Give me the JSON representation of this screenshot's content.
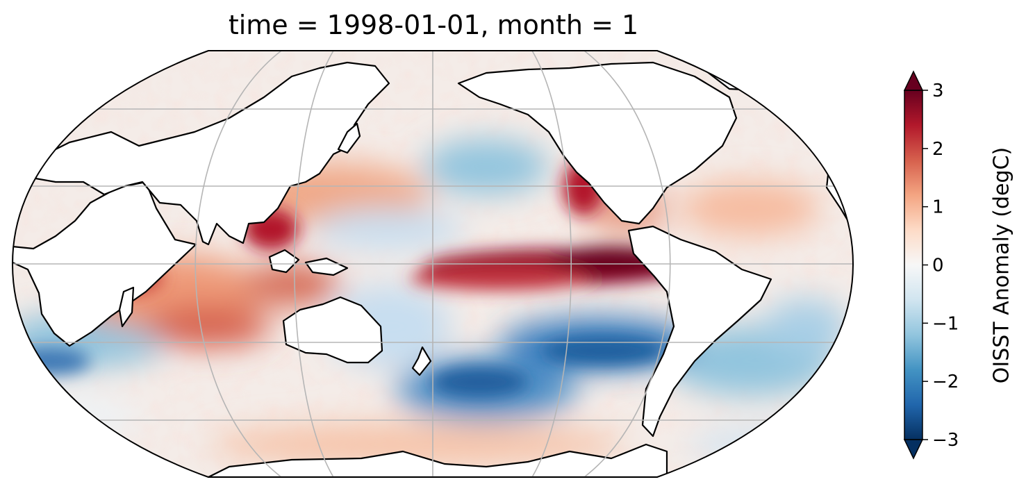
{
  "title": "time = 1998-01-01, month = 1",
  "colorbar": {
    "label": "OISST Anomaly (degC)",
    "ticks": [
      "−3",
      "−2",
      "−1",
      "0",
      "1",
      "2",
      "3"
    ],
    "tick_values": [
      -3,
      -2,
      -1,
      0,
      1,
      2,
      3
    ],
    "vmin": -3,
    "vmax": 3,
    "extend": "both",
    "colormap": "RdBu_r",
    "colors": [
      "#053061",
      "#2166ac",
      "#4393c3",
      "#92c5de",
      "#d1e5f0",
      "#f7f7f7",
      "#fddbc7",
      "#f4a582",
      "#d6604d",
      "#b2182b",
      "#67001f"
    ]
  },
  "map": {
    "projection": "Robinson",
    "central_longitude": 180,
    "gridlines": true,
    "coastlines": true,
    "variable": "sea surface temperature anomaly"
  }
}
